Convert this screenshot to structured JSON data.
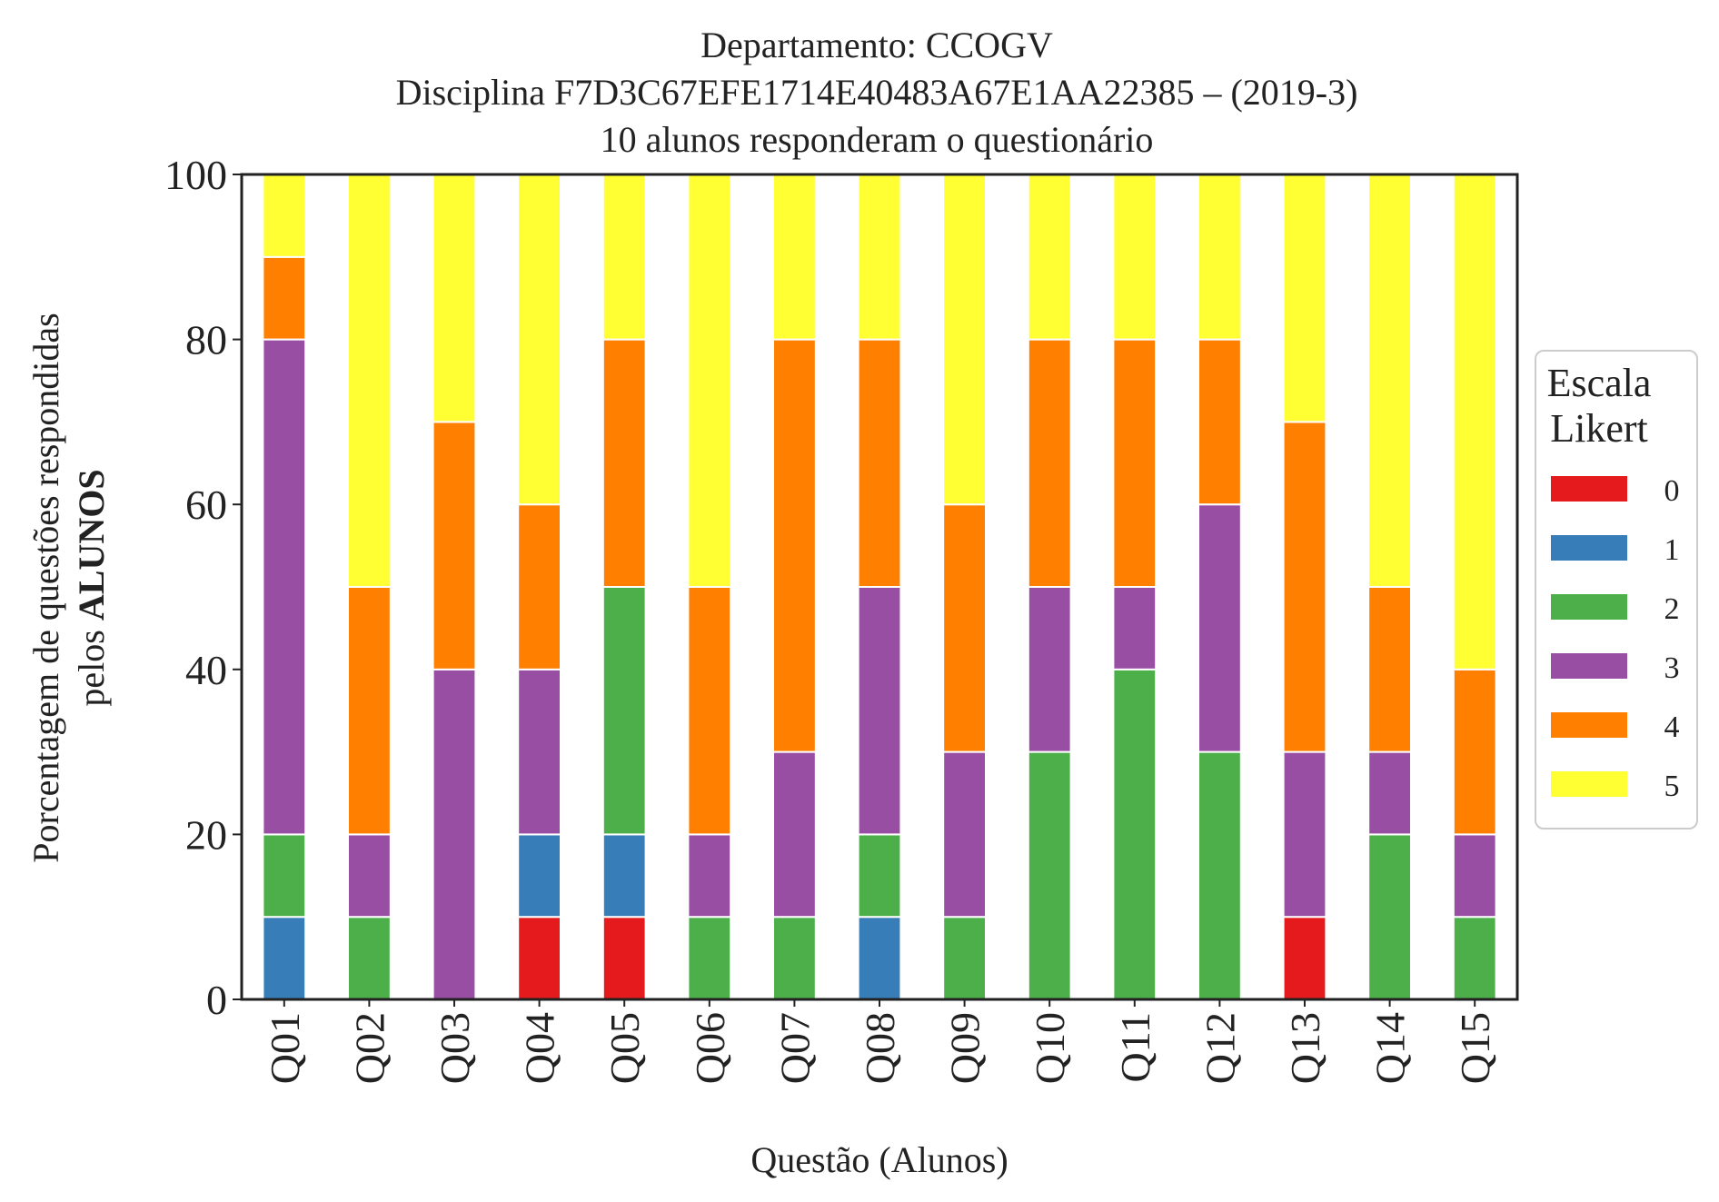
{
  "chart_data": {
    "type": "bar",
    "stacked": true,
    "title_lines": [
      "Departamento: CCOGV",
      "Disciplina F7D3C67EFE1714E40483A67E1AA22385 – (2019-3)",
      "10 alunos responderam o questionário"
    ],
    "xlabel": "Questão (Alunos)",
    "ylabel_line1": "Porcentagem de questões respondidas",
    "ylabel_line2_prefix": "pelos ",
    "ylabel_line2_bold": "ALUNOS",
    "ylim": [
      0,
      100
    ],
    "yticks": [
      0,
      20,
      40,
      60,
      80,
      100
    ],
    "grid": false,
    "legend_position": "right",
    "legend_title_lines": [
      "Escala",
      "Likert"
    ],
    "categories": [
      "Q01",
      "Q02",
      "Q03",
      "Q04",
      "Q05",
      "Q06",
      "Q07",
      "Q08",
      "Q09",
      "Q10",
      "Q11",
      "Q12",
      "Q13",
      "Q14",
      "Q15"
    ],
    "series": [
      {
        "name": "0",
        "color": "#e41a1c",
        "values": [
          0,
          0,
          0,
          10,
          10,
          0,
          0,
          0,
          0,
          0,
          0,
          0,
          10,
          0,
          0
        ]
      },
      {
        "name": "1",
        "color": "#377eb8",
        "values": [
          10,
          0,
          0,
          10,
          10,
          0,
          0,
          10,
          0,
          0,
          0,
          0,
          0,
          0,
          0
        ]
      },
      {
        "name": "2",
        "color": "#4daf4a",
        "values": [
          10,
          10,
          0,
          0,
          30,
          10,
          10,
          10,
          10,
          30,
          40,
          30,
          0,
          20,
          10
        ]
      },
      {
        "name": "3",
        "color": "#984ea3",
        "values": [
          60,
          10,
          40,
          20,
          0,
          10,
          20,
          30,
          20,
          20,
          10,
          30,
          20,
          10,
          10
        ]
      },
      {
        "name": "4",
        "color": "#ff7f00",
        "values": [
          10,
          30,
          30,
          20,
          30,
          30,
          50,
          30,
          30,
          30,
          30,
          20,
          40,
          20,
          20
        ]
      },
      {
        "name": "5",
        "color": "#ffff33",
        "values": [
          10,
          50,
          30,
          40,
          20,
          50,
          20,
          20,
          40,
          20,
          20,
          20,
          30,
          50,
          60
        ]
      }
    ]
  }
}
